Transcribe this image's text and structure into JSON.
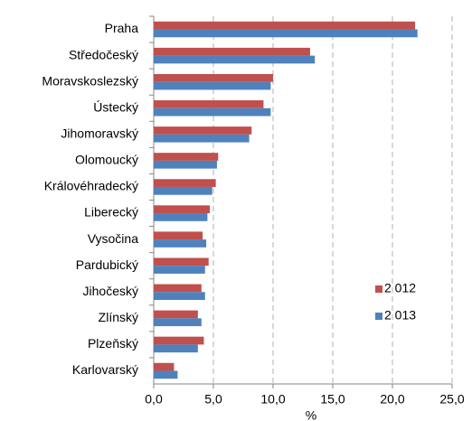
{
  "chart_data": {
    "type": "hbar",
    "categories": [
      "Praha",
      "Středočeský",
      "Moravskoslezský",
      "Ústecký",
      "Jihomoravský",
      "Olomoucký",
      "Královéhradecký",
      "Liberecký",
      "Vysočina",
      "Pardubický",
      "Jihočeský",
      "Zlínský",
      "Plzeňský",
      "Karlovarský"
    ],
    "series": [
      {
        "name": "2 012",
        "color": "#c0504d",
        "values": [
          21.9,
          13.1,
          10.0,
          9.2,
          8.2,
          5.4,
          5.2,
          4.7,
          4.1,
          4.6,
          4.0,
          3.7,
          4.2,
          1.7
        ]
      },
      {
        "name": "2 013",
        "color": "#4f81bd",
        "values": [
          22.1,
          13.5,
          9.8,
          9.8,
          8.0,
          5.3,
          4.9,
          4.5,
          4.4,
          4.3,
          4.3,
          4.0,
          3.7,
          2.0
        ]
      }
    ],
    "x_label": "%",
    "xlim": [
      0,
      25
    ],
    "xticks": [
      {
        "value": 0,
        "label": "0,0"
      },
      {
        "value": 5,
        "label": "5,0"
      },
      {
        "value": 10,
        "label": "10,0"
      },
      {
        "value": 15,
        "label": "15,0"
      },
      {
        "value": 20,
        "label": "20,0"
      },
      {
        "value": 25,
        "label": "25,0"
      }
    ],
    "grid": true,
    "legend": "lower right"
  }
}
